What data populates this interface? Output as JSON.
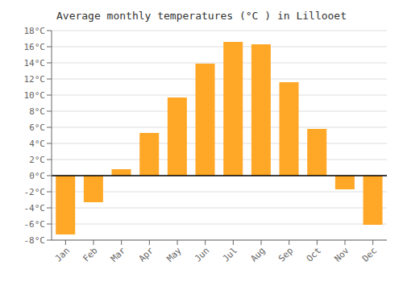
{
  "chart_data": {
    "type": "bar",
    "title": "Average monthly temperatures (°C ) in Lillooet",
    "categories": [
      "Jan",
      "Feb",
      "Mar",
      "Apr",
      "May",
      "Jun",
      "Jul",
      "Aug",
      "Sep",
      "Oct",
      "Nov",
      "Dec"
    ],
    "values": [
      -7.3,
      -3.3,
      0.8,
      5.3,
      9.7,
      13.9,
      16.6,
      16.3,
      11.6,
      5.8,
      -1.7,
      -6.1
    ],
    "color": "#FFA726",
    "ylim": [
      -8,
      18
    ],
    "yticks": [
      {
        "value": -8,
        "label": "-8°C"
      },
      {
        "value": -6,
        "label": "-6°C"
      },
      {
        "value": -4,
        "label": "-4°C"
      },
      {
        "value": -2,
        "label": "-2°C"
      },
      {
        "value": 0,
        "label": "0°C"
      },
      {
        "value": 2,
        "label": "2°C"
      },
      {
        "value": 4,
        "label": "4°C"
      },
      {
        "value": 6,
        "label": "6°C"
      },
      {
        "value": 8,
        "label": "8°C"
      },
      {
        "value": 10,
        "label": "10°C"
      },
      {
        "value": 12,
        "label": "12°C"
      },
      {
        "value": 14,
        "label": "14°C"
      },
      {
        "value": 16,
        "label": "16°C"
      },
      {
        "value": 18,
        "label": "18°C"
      }
    ],
    "grid": true
  }
}
